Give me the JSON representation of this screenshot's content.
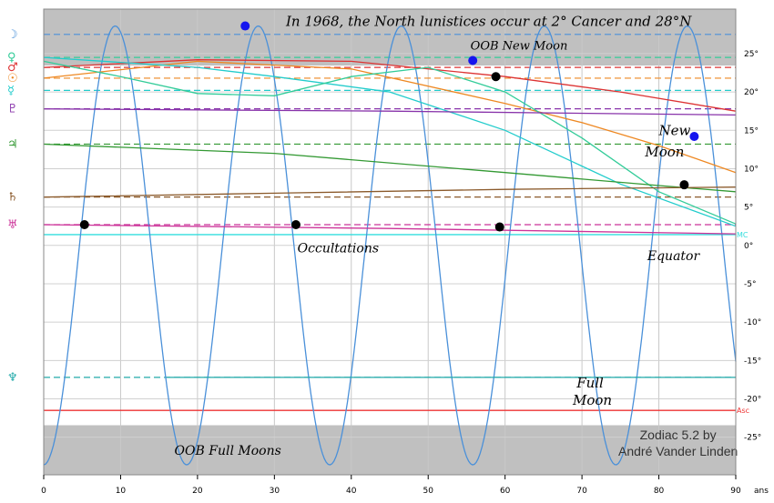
{
  "chart_data": {
    "type": "line",
    "title": "In 1968, the North lunistices occur at 2° Cancer and 28°N",
    "credit": [
      "Zodiac 5.2 by",
      "André Vander Linden"
    ],
    "xlabel": "ans",
    "xlim": [
      0,
      90
    ],
    "ylim": [
      -29.9,
      30.8
    ],
    "x_ticks": [
      0,
      10,
      20,
      30,
      40,
      50,
      60,
      70,
      80,
      90
    ],
    "x_tick_labels": [
      "0",
      "10",
      "20",
      "30",
      "40",
      "50",
      "60",
      "70",
      "80",
      "90"
    ],
    "x_unit_label": "ans",
    "y_ticks": [
      25,
      20,
      15,
      10,
      5,
      0,
      -5,
      -10,
      -15,
      -20,
      -25
    ],
    "y_tick_labels": [
      "25°",
      "20°",
      "15°",
      "10°",
      "5°",
      "0°",
      "-5°",
      "-10°",
      "-15°",
      "-20°",
      "-25°"
    ],
    "oob_band_limit": 23.44,
    "grid": true,
    "reference_lines": [
      {
        "name": "Moon",
        "glyph": "☽",
        "y": 27.5,
        "color": "#4a90d9"
      },
      {
        "name": "Venus",
        "glyph": "♀",
        "y": 24.5,
        "color": "#33cc99"
      },
      {
        "name": "Mars",
        "glyph": "♂",
        "y": 23.2,
        "color": "#dd3333"
      },
      {
        "name": "Sun",
        "glyph": "☉",
        "y": 21.8,
        "color": "#ee8822"
      },
      {
        "name": "Mercury",
        "glyph": "☿",
        "y": 20.2,
        "color": "#22cccc"
      },
      {
        "name": "Pluto",
        "glyph": "♇",
        "y": 17.8,
        "color": "#8833aa"
      },
      {
        "name": "Jupiter",
        "glyph": "♃",
        "y": 13.2,
        "color": "#339933"
      },
      {
        "name": "Saturn",
        "glyph": "♄",
        "y": 6.3,
        "color": "#8b5a2b"
      },
      {
        "name": "Uranus",
        "glyph": "♅",
        "y": 2.7,
        "color": "#cc3399"
      },
      {
        "name": "Neptune",
        "glyph": "♆",
        "y": -17.2,
        "color": "#22aaaa"
      }
    ],
    "special_lines": [
      {
        "name": "MC",
        "label": "MC",
        "y": 1.4,
        "color": "#33dddd"
      },
      {
        "name": "Asc",
        "label": "Asc",
        "y": -21.5,
        "color": "#ee3333"
      }
    ],
    "series": [
      {
        "name": "Moon",
        "color": "#4a90d9",
        "type": "sine",
        "period": 18.6,
        "amplitude": 28.6,
        "phase_x": 4.65
      },
      {
        "name": "Sun",
        "color": "#ee8822",
        "x": [
          0,
          20,
          40,
          60,
          70,
          80,
          90
        ],
        "y": [
          21.8,
          24.0,
          23.0,
          18.5,
          16.0,
          13.0,
          9.5
        ]
      },
      {
        "name": "Mars",
        "color": "#dd3333",
        "x": [
          0,
          20,
          40,
          60,
          75,
          90
        ],
        "y": [
          23.2,
          24.2,
          24.0,
          22.0,
          20.0,
          17.5
        ]
      },
      {
        "name": "Mercury",
        "color": "#22cccc",
        "x": [
          0,
          20,
          30,
          45,
          60,
          75,
          90
        ],
        "y": [
          24.5,
          23.2,
          22.0,
          20.0,
          15.0,
          8.0,
          2.5
        ]
      },
      {
        "name": "Venus",
        "color": "#33cc99",
        "x": [
          0,
          10,
          20,
          30,
          40,
          50,
          60,
          70,
          80,
          90
        ],
        "y": [
          24.0,
          22.0,
          19.8,
          19.5,
          22.0,
          23.2,
          20.0,
          14.0,
          7.0,
          2.8
        ]
      },
      {
        "name": "Pluto",
        "color": "#8833aa",
        "x": [
          0,
          45,
          90
        ],
        "y": [
          17.8,
          17.5,
          17.0
        ]
      },
      {
        "name": "Jupiter",
        "color": "#339933",
        "x": [
          0,
          30,
          60,
          80,
          90
        ],
        "y": [
          13.2,
          12.0,
          9.5,
          7.8,
          7.0
        ]
      },
      {
        "name": "Saturn",
        "color": "#8b5a2b",
        "x": [
          0,
          30,
          60,
          90
        ],
        "y": [
          6.3,
          6.8,
          7.3,
          7.6
        ]
      },
      {
        "name": "Uranus",
        "color": "#cc3399",
        "x": [
          0,
          45,
          90
        ],
        "y": [
          2.7,
          2.2,
          1.5
        ]
      },
      {
        "name": "Neptune",
        "color": "#22aaaa",
        "x": [
          16,
          90
        ],
        "y": [
          -17.2,
          -17.2
        ]
      }
    ],
    "annotations": [
      {
        "text": "OOB  New Moon",
        "x": 55.5,
        "y": 25.5,
        "size": 13
      },
      {
        "text": "New",
        "x": 80.0,
        "y": 14.4,
        "size": 15
      },
      {
        "text": "Moon",
        "x": 78.2,
        "y": 11.6,
        "size": 15
      },
      {
        "text": "Occultations",
        "x": 33.0,
        "y": -0.9,
        "size": 14
      },
      {
        "text": "Equator",
        "x": 78.5,
        "y": -1.9,
        "size": 14
      },
      {
        "text": "Full",
        "x": 69.3,
        "y": -18.5,
        "size": 15
      },
      {
        "text": "Moon",
        "x": 68.8,
        "y": -20.8,
        "size": 15
      },
      {
        "text": "OOB  Full Moons",
        "x": 17.0,
        "y": -27.3,
        "size": 14
      }
    ],
    "markers": [
      {
        "x": 26.2,
        "y": 28.6,
        "color": "#1515ee"
      },
      {
        "x": 55.8,
        "y": 24.1,
        "color": "#1515ee"
      },
      {
        "x": 84.6,
        "y": 14.2,
        "color": "#1515ee"
      },
      {
        "x": 5.3,
        "y": 2.7,
        "color": "#000000"
      },
      {
        "x": 32.8,
        "y": 2.7,
        "color": "#000000"
      },
      {
        "x": 59.3,
        "y": 2.4,
        "color": "#000000"
      },
      {
        "x": 58.8,
        "y": 22.0,
        "color": "#000000"
      },
      {
        "x": 83.3,
        "y": 7.9,
        "color": "#000000"
      }
    ]
  }
}
